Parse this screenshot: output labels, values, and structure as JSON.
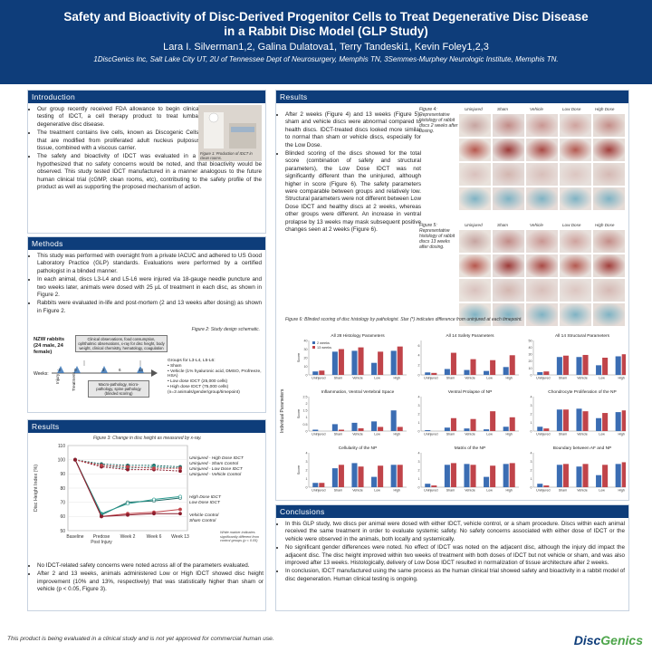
{
  "header": {
    "title_line1": "Safety and Bioactivity of Disc-Derived Progenitor Cells to Treat Degenerative Disc Disease",
    "title_line2": "in a Rabbit Disc Model (GLP Study)",
    "authors": "Lara I. Silverman1,2, Galina Dulatova1, Terry Tandeski1, Kevin Foley1,2,3",
    "affiliations": "1DiscGenics Inc, Salt Lake City UT, 2U of Tennessee Dept of Neurosurgery, Memphis TN, 3Semmes-Murphey Neurologic Institute, Memphis TN."
  },
  "intro": {
    "heading": "Introduction",
    "b1": "Our group recently received FDA allowance to begin clinical testing of IDCT, a cell therapy product to treat lumbar degenerative disc disease.",
    "b2": "The treatment contains live cells, known as Discogenic Cells, that are modified from proliferated adult nucleus pulposus tissue, combined with a viscous carrier.",
    "b3": "The safety and bioactivity of IDCT was evaluated in a GLP rabbit study. We hypothesized that no safety concerns would be noted, and that bioactivity would be observed. This study tested IDCT manufactured in a manner analogous to the future human clinical trial (cGMP, clean rooms, etc), contributing to the safety profile of the product as well as supporting the proposed mechanism of action.",
    "fig1_caption": "Figure 1: Production of IDCT in clean rooms."
  },
  "methods": {
    "heading": "Methods",
    "b1": "This study was performed with oversight from a private IACUC and adhered to US Good Laboratory Practice (GLP) standards. Evaluations were performed by a certified pathologist in a blinded manner.",
    "b2": "In each animal, discs L3-L4 and L5-L6 were injured via 18-gauge needle puncture and two weeks later, animals were dosed with 25 µL of treatment in each disc, as shown in Figure 2.",
    "b3": "Rabbits were evaluated in-life and post-mortem (2 and 13 weeks after dosing) as shown in Figure 2.",
    "fig2_caption": "Figure 2: Study design schematic.",
    "nzw": "NZW rabbits (24 male, 24 female)",
    "clin_box": "Clinical observations, food consumption, ophthalmic observations, x-ray for disc height, body weight, clinical chemistry, hematology, coagulation",
    "weeks_label": "Weeks:",
    "week_ticks": [
      "-2",
      "0",
      "2",
      "6",
      "13"
    ],
    "injury_label": "Injury",
    "treatment_label": "Treatment",
    "macro_box": "Macro-pathology, micro-pathology, spine pathology (blinded scoring)",
    "groups_title": "Groups for L3-L4, L5-L6:",
    "groups": [
      "Sham",
      "Vehicle (1% hyaluronic acid, DMSO, Profreeze, HSA)",
      "Low dose IDCT (25,000 cells)",
      "High dose IDCT (75,000 cells)"
    ],
    "groups_note": "(n=3 animals/gender/group/timepoint)"
  },
  "results_left": {
    "heading": "Results",
    "fig3_caption": "Figure 3: Change in disc height as measured by x-ray.",
    "b1": "No IDCT-related safety concerns were noted across all of the parameters evaluated.",
    "b2": "After 2 and 13 weeks, animals administered Low or High IDCT showed disc height improvement (10% and 13%, respectively) that was statistically higher than sham or vehicle (p < 0.05, Figure 3).",
    "legend_top": [
      "Uninjured - High Dose IDCT",
      "Uninjured - Sham Control",
      "Uninjured - Low Dose IDCT",
      "Uninjured - Vehicle Control"
    ],
    "legend_mid": [
      "High Dose IDCT",
      "Low Dose IDCT"
    ],
    "legend_bot": [
      "Vehicle Control",
      "Sham Control"
    ],
    "star_note": "White marker indicates significantly different from control groups (p < 0.05)"
  },
  "results_right": {
    "heading": "Results",
    "b1": "After 2 weeks (Figure 4) and 13 weeks (Figure 5), sham and vehicle discs were abnormal compared to health discs. IDCT-treated discs looked more similar to normal than sham or vehicle discs, especially for the Low Dose.",
    "b2": "Blinded scoring of the discs showed for the total score (combination of safety and structural parameters), the Low Dose IDCT was not significantly different than the uninjured, although higher in score (Figure 6). The safety parameters were comparable between groups and relatively low. Structural parameters were not different between Low Dose IDCT and healthy discs at 2 weeks, whereas other groups were different. An increase in ventral prolapse by 13 weeks may mask subsequent positive changes seen at 2 weeks (Figure 6).",
    "fig4_caption": "Figure 4: Representative histology of rabbit discs 2 weeks after dosing.",
    "fig5_caption": "Figure 5: Representative histology of rabbit discs 13 weeks after dosing.",
    "hist_cols": [
      "Uninjured",
      "Sham",
      "Vehicle",
      "Low Dose",
      "High Dose"
    ],
    "fig6_caption": "Figure 6: Blinded scoring of disc histology by pathologist. Star (*) indicates difference from uninjured at each timepoint.",
    "ind_params_label": "Individual Parameters",
    "score_label": "Score"
  },
  "conclusions": {
    "heading": "Conclusions",
    "b1": "In this GLP study, two discs per animal were dosed with either IDCT, vehicle control, or a sham procedure. Discs within each animal received the same treatment in order to evaluate systemic safety. No safety concerns associated with either dose of IDCT or the vehicle were observed in the animals, both locally and systemically.",
    "b2": "No significant gender differences were noted. No effect of IDCT was noted on the adjacent disc, although the injury did impact the adjacent disc. The disc height improved within two weeks of treatment with both doses of IDCT but not vehicle or sham, and was also improved after 13 weeks. Histologically, delivery of Low Dose IDCT resulted in normalization of tissue architecture after 2 weeks.",
    "b3": "In conclusion, IDCT manufactured using the same process as the human clinical trial showed safety and bioactivity in a rabbit model of disc degeneration. Human clinical testing is ongoing."
  },
  "footer": {
    "note": "This product is being evaluated in a clinical study and is not yet approved for commercial human use.",
    "logo_a": "Disc",
    "logo_b": "Genics"
  },
  "colors": {
    "navy": "#0e3d7a",
    "series_2wk": "#3b6db3",
    "series_13wk": "#c0444a"
  },
  "chart_data": [
    {
      "type": "line",
      "title": "Figure 3: Change in disc height as measured by x-ray.",
      "xlabel": "",
      "ylabel": "Disc Height Index (%)",
      "categories": [
        "Baseline",
        "Predose Post Injury",
        "Week 2",
        "Week 6",
        "Week 13"
      ],
      "ylim": [
        50,
        110
      ],
      "yticks": [
        50,
        60,
        70,
        80,
        90,
        100,
        110
      ],
      "series": [
        {
          "name": "Uninjured - High Dose IDCT",
          "color": "#1f6b66",
          "dash": true,
          "values": [
            100,
            97,
            96,
            96,
            95
          ]
        },
        {
          "name": "Uninjured - Sham Control",
          "color": "#2a9a8f",
          "dash": true,
          "values": [
            100,
            96,
            94,
            95,
            94
          ]
        },
        {
          "name": "Uninjured - Low Dose IDCT",
          "color": "#8b1c2c",
          "dash": true,
          "values": [
            100,
            95,
            93,
            93,
            92
          ]
        },
        {
          "name": "Uninjured - Vehicle Control",
          "color": "#c0444a",
          "dash": true,
          "values": [
            100,
            96,
            95,
            94,
            94
          ]
        },
        {
          "name": "High Dose IDCT",
          "color": "#1f6b66",
          "dash": false,
          "values": [
            100,
            61,
            70,
            71,
            73
          ]
        },
        {
          "name": "Low Dose IDCT",
          "color": "#2a9a8f",
          "dash": false,
          "values": [
            100,
            62,
            69,
            72,
            74
          ]
        },
        {
          "name": "Vehicle Control",
          "color": "#c0444a",
          "dash": false,
          "values": [
            100,
            60,
            62,
            63,
            65
          ]
        },
        {
          "name": "Sham Control",
          "color": "#8b1c2c",
          "dash": false,
          "values": [
            100,
            60,
            61,
            62,
            62
          ]
        }
      ]
    },
    {
      "type": "bar",
      "panels": [
        {
          "title": "All 28 Histology Parameters",
          "ylim": [
            0,
            40
          ],
          "yticks": [
            0,
            10,
            20,
            30,
            40
          ],
          "categories": [
            "Uninjured",
            "Sham",
            "Vehicle",
            "Low",
            "High"
          ],
          "legend": [
            "2 weeks",
            "13 weeks"
          ],
          "series": [
            {
              "name": "2 weeks",
              "values": [
                4,
                27,
                28,
                14,
                28
              ]
            },
            {
              "name": "13 weeks",
              "values": [
                5,
                30,
                32,
                27,
                33
              ]
            }
          ]
        },
        {
          "title": "All 14 Safety Parameters",
          "ylim": [
            0,
            7
          ],
          "yticks": [
            0,
            1,
            2,
            3,
            4,
            5,
            6,
            7
          ],
          "categories": [
            "Uninjured",
            "Sham",
            "Vehicle",
            "Low",
            "High"
          ],
          "series": [
            {
              "name": "2 weeks",
              "values": [
                0.5,
                1.2,
                1.0,
                0.8,
                1.6
              ]
            },
            {
              "name": "13 weeks",
              "values": [
                0.4,
                4.5,
                3.2,
                3.0,
                4.0
              ]
            }
          ]
        },
        {
          "title": "All 14 Structural Parameters",
          "ylim": [
            0,
            50
          ],
          "yticks": [
            0,
            5,
            10,
            15,
            20,
            25,
            30,
            35,
            40,
            45,
            50
          ],
          "categories": [
            "Uninjured",
            "Sham",
            "Vehicle",
            "Low",
            "High"
          ],
          "series": [
            {
              "name": "2 weeks",
              "values": [
                4,
                26,
                26,
                14,
                27
              ]
            },
            {
              "name": "13 weeks",
              "values": [
                5,
                28,
                29,
                25,
                30
              ]
            }
          ]
        },
        {
          "title": "Inflammation, Ventral Vertebral Space",
          "ylim": [
            0,
            2.5
          ],
          "yticks": [
            0,
            0.5,
            1,
            1.5,
            2,
            2.5
          ],
          "categories": [
            "Uninjured",
            "Sham",
            "Vehicle",
            "Low",
            "High"
          ],
          "series": [
            {
              "name": "2 weeks",
              "values": [
                0.1,
                0.5,
                0.6,
                0.7,
                1.5
              ]
            },
            {
              "name": "13 weeks",
              "values": [
                0.0,
                0.1,
                0.2,
                0.3,
                0.3
              ]
            }
          ]
        },
        {
          "title": "Ventral Prolapse of NP",
          "ylim": [
            0,
            4
          ],
          "yticks": [
            0,
            1,
            2,
            3,
            4
          ],
          "categories": [
            "Uninjured",
            "Sham",
            "Vehicle",
            "Low",
            "High"
          ],
          "series": [
            {
              "name": "2 weeks",
              "values": [
                0.1,
                0.4,
                0.3,
                0.2,
                0.5
              ]
            },
            {
              "name": "13 weeks",
              "values": [
                0.0,
                1.5,
                1.4,
                2.3,
                1.6
              ]
            }
          ]
        },
        {
          "title": "Chondrocyte Proliferation of the NP",
          "ylim": [
            0,
            4
          ],
          "yticks": [
            0,
            1,
            2,
            3,
            4
          ],
          "categories": [
            "Uninjured",
            "Sham",
            "Vehicle",
            "Low",
            "High"
          ],
          "series": [
            {
              "name": "2 weeks",
              "values": [
                0.5,
                2.5,
                2.6,
                1.5,
                2.2
              ]
            },
            {
              "name": "13 weeks",
              "values": [
                0.3,
                2.5,
                2.3,
                2.1,
                2.4
              ]
            }
          ]
        },
        {
          "title": "Cellularity of the NP",
          "ylim": [
            0,
            4
          ],
          "yticks": [
            0,
            1,
            2,
            3,
            4
          ],
          "categories": [
            "Uninjured",
            "Sham",
            "Vehicle",
            "Low",
            "High"
          ],
          "series": [
            {
              "name": "2 weeks",
              "values": [
                0.5,
                2.2,
                2.8,
                1.2,
                2.6
              ]
            },
            {
              "name": "13 weeks",
              "values": [
                0.5,
                2.6,
                2.4,
                2.5,
                2.6
              ]
            }
          ]
        },
        {
          "title": "Matrix of the NP",
          "ylim": [
            0,
            4
          ],
          "yticks": [
            0,
            1,
            2,
            3,
            4
          ],
          "categories": [
            "Uninjured",
            "Sham",
            "Vehicle",
            "Low",
            "High"
          ],
          "series": [
            {
              "name": "2 weeks",
              "values": [
                0.4,
                2.6,
                2.7,
                1.2,
                2.7
              ]
            },
            {
              "name": "13 weeks",
              "values": [
                0.2,
                2.8,
                2.6,
                2.5,
                2.8
              ]
            }
          ]
        },
        {
          "title": "Boundary between AF and NP",
          "ylim": [
            0,
            4
          ],
          "yticks": [
            0,
            1,
            2,
            3,
            4
          ],
          "categories": [
            "Uninjured",
            "Sham",
            "Vehicle",
            "Low",
            "High"
          ],
          "series": [
            {
              "name": "2 weeks",
              "values": [
                0.4,
                2.6,
                2.4,
                1.4,
                2.7
              ]
            },
            {
              "name": "13 weeks",
              "values": [
                0.2,
                2.7,
                2.7,
                2.6,
                2.9
              ]
            }
          ]
        }
      ]
    }
  ]
}
